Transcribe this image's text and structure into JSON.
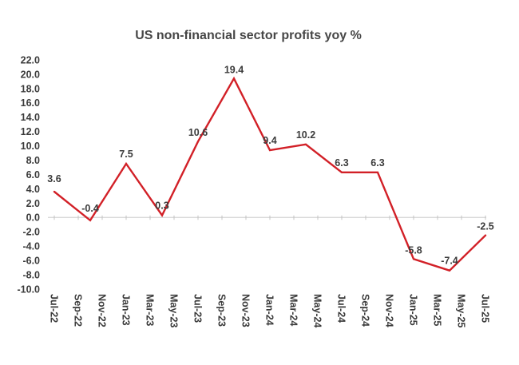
{
  "title": "US non-financial sector profits yoy %",
  "colors": {
    "line": "#d22027",
    "gridline": "#d9d9d9",
    "axis_tick": "#c4c4c4",
    "label_text": "#3b3b3b",
    "title_text": "#464646",
    "background": "#ffffff"
  },
  "chart_data": {
    "type": "line",
    "title": "US non-financial sector profits yoy %",
    "xlabel": "",
    "ylabel": "",
    "legend": "none",
    "grid": "zero-line-only",
    "ylim": [
      -10,
      22
    ],
    "y_tick_step": 2,
    "y_tick_labels": [
      "22.0",
      "20.0",
      "18.0",
      "16.0",
      "14.0",
      "12.0",
      "10.0",
      "8.0",
      "6.0",
      "4.0",
      "2.0",
      "0.0",
      "-2.0",
      "-4.0",
      "-6.0",
      "-8.0",
      "-10.0"
    ],
    "x_tick_labels": [
      "Jul-22",
      "Sep-22",
      "Nov-22",
      "Jan-23",
      "Mar-23",
      "May-23",
      "Jul-23",
      "Sep-23",
      "Nov-23",
      "Jan-24",
      "Mar-24",
      "May-24",
      "Jul-24",
      "Sep-24",
      "Nov-24",
      "Jan-25",
      "Mar-25",
      "May-25",
      "Jul-25"
    ],
    "x_tick_interval_months": 2,
    "point_interval_months": 3,
    "series": [
      {
        "name": "US non-financial sector profits yoy %",
        "x": [
          "Jul-22",
          "Oct-22",
          "Jan-23",
          "Apr-23",
          "Jul-23",
          "Oct-23",
          "Jan-24",
          "Apr-24",
          "Jul-24",
          "Oct-24",
          "Jan-25",
          "Apr-25",
          "Jul-25"
        ],
        "values": [
          3.6,
          -0.4,
          7.5,
          0.3,
          10.6,
          19.4,
          9.4,
          10.2,
          6.3,
          6.3,
          -5.8,
          -7.4,
          -2.5
        ]
      }
    ],
    "data_labels": [
      "3.6",
      "-0.4",
      "7.5",
      "0.3",
      "10.6",
      "19.4",
      "9.4",
      "10.2",
      "6.3",
      "6.3",
      "-5.8",
      "-7.4",
      "-2.5"
    ]
  }
}
